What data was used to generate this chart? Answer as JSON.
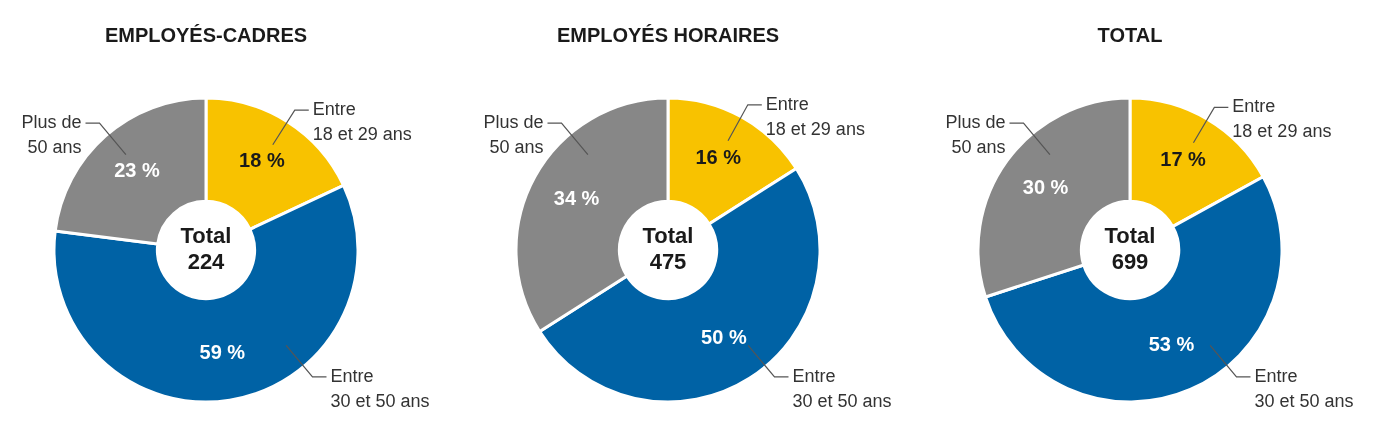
{
  "chart_data": [
    {
      "type": "donut",
      "title": "EMPLOYÉS-CADRES",
      "categories": [
        "Entre 18 et 29 ans",
        "Entre 30 et 50 ans",
        "Plus de 50 ans"
      ],
      "values": [
        18,
        59,
        23
      ],
      "value_labels": [
        "18 %",
        "59 %",
        "23 %"
      ],
      "colors": [
        "#f8c200",
        "#0062a5",
        "#878787"
      ],
      "annotations": [
        "Total 224"
      ],
      "legend": false
    },
    {
      "type": "donut",
      "title": "EMPLOYÉS HORAIRES",
      "categories": [
        "Entre 18 et 29 ans",
        "Entre 30 et 50 ans",
        "Plus de 50 ans"
      ],
      "values": [
        16,
        50,
        34
      ],
      "value_labels": [
        "16 %",
        "50 %",
        "34 %"
      ],
      "colors": [
        "#f8c200",
        "#0062a5",
        "#878787"
      ],
      "annotations": [
        "Total 475"
      ],
      "legend": false
    },
    {
      "type": "donut",
      "title": "TOTAL",
      "categories": [
        "Entre 18 et 29 ans",
        "Entre 30 et 50 ans",
        "Plus de 50 ans"
      ],
      "values": [
        17,
        53,
        30
      ],
      "value_labels": [
        "17 %",
        "53 %",
        "30 %"
      ],
      "colors": [
        "#f8c200",
        "#0062a5",
        "#878787"
      ],
      "annotations": [
        "Total 699"
      ],
      "legend": false
    }
  ]
}
